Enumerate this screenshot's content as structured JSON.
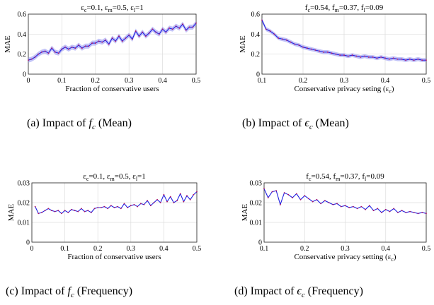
{
  "figure": {
    "captions": [
      "(a) Impact of $f_c$ (Mean)",
      "(b) Impact of $\\epsilon_c$ (Mean)",
      "(c) Impact of $f_c$ (Frequency)",
      "(d) Impact of $\\epsilon_c$ (Frequency)"
    ],
    "line_color": "#1f1fe0",
    "band_color": "#8f8ff0"
  },
  "chart_data": [
    {
      "type": "line",
      "title": "ε_c=0.1, ε_m=0.5, ε_l=1",
      "xlabel": "Fraction of conservative users",
      "ylabel": "MAE",
      "xlim": [
        0,
        0.5
      ],
      "ylim": [
        0,
        0.6
      ],
      "xticks": [
        "0",
        "0.1",
        "0.2",
        "0.3",
        "0.4",
        "0.5"
      ],
      "yticks": [
        "0",
        "0.2",
        "0.4",
        "0.6"
      ],
      "grid": true,
      "band": true,
      "series": [
        {
          "x": [
            0.0,
            0.01,
            0.02,
            0.03,
            0.04,
            0.05,
            0.06,
            0.07,
            0.08,
            0.09,
            0.1,
            0.11,
            0.12,
            0.13,
            0.14,
            0.15,
            0.16,
            0.17,
            0.18,
            0.19,
            0.2,
            0.21,
            0.22,
            0.23,
            0.24,
            0.25,
            0.26,
            0.27,
            0.28,
            0.29,
            0.3,
            0.31,
            0.32,
            0.33,
            0.34,
            0.35,
            0.36,
            0.37,
            0.38,
            0.39,
            0.4,
            0.41,
            0.42,
            0.43,
            0.44,
            0.45,
            0.46,
            0.47,
            0.48,
            0.49,
            0.5
          ],
          "values": [
            0.14,
            0.15,
            0.17,
            0.2,
            0.22,
            0.23,
            0.21,
            0.26,
            0.22,
            0.21,
            0.25,
            0.27,
            0.25,
            0.27,
            0.26,
            0.29,
            0.26,
            0.28,
            0.28,
            0.31,
            0.31,
            0.33,
            0.32,
            0.34,
            0.3,
            0.36,
            0.33,
            0.38,
            0.33,
            0.36,
            0.39,
            0.35,
            0.43,
            0.38,
            0.42,
            0.38,
            0.41,
            0.45,
            0.42,
            0.4,
            0.45,
            0.42,
            0.46,
            0.45,
            0.48,
            0.46,
            0.5,
            0.44,
            0.47,
            0.47,
            0.51
          ],
          "band_halfwidth": 0.025
        }
      ]
    },
    {
      "type": "line",
      "title": "f_c=0.54, f_m=0.37, f_l=0.09",
      "xlabel": "Conservative privacy seting (ε_c)",
      "ylabel": "MAE",
      "xlim": [
        0.1,
        0.5
      ],
      "ylim": [
        0,
        0.6
      ],
      "xticks": [
        "0.1",
        "0.2",
        "0.3",
        "0.4",
        "0.5"
      ],
      "yticks": [
        "0",
        "0.2",
        "0.4",
        "0.6"
      ],
      "grid": true,
      "band": true,
      "series": [
        {
          "x": [
            0.1,
            0.11,
            0.12,
            0.13,
            0.14,
            0.15,
            0.16,
            0.17,
            0.18,
            0.19,
            0.2,
            0.21,
            0.22,
            0.23,
            0.24,
            0.25,
            0.26,
            0.27,
            0.28,
            0.29,
            0.3,
            0.31,
            0.32,
            0.33,
            0.34,
            0.35,
            0.36,
            0.37,
            0.38,
            0.39,
            0.4,
            0.41,
            0.42,
            0.43,
            0.44,
            0.45,
            0.46,
            0.47,
            0.48,
            0.49,
            0.5
          ],
          "values": [
            0.54,
            0.45,
            0.43,
            0.4,
            0.36,
            0.35,
            0.34,
            0.32,
            0.3,
            0.29,
            0.27,
            0.26,
            0.25,
            0.24,
            0.23,
            0.22,
            0.22,
            0.21,
            0.2,
            0.19,
            0.19,
            0.18,
            0.19,
            0.18,
            0.17,
            0.18,
            0.17,
            0.17,
            0.16,
            0.17,
            0.16,
            0.15,
            0.16,
            0.15,
            0.15,
            0.14,
            0.15,
            0.14,
            0.15,
            0.14,
            0.14
          ],
          "band_halfwidth": 0.02
        }
      ]
    },
    {
      "type": "line",
      "title": "ε_c=0.1, ε_m=0.5, ε_l=1",
      "xlabel": "Fraction of conservative users",
      "ylabel": "MAE",
      "xlim": [
        0,
        0.5
      ],
      "ylim": [
        0,
        0.03
      ],
      "xticks": [
        "0",
        "0.1",
        "0.2",
        "0.3",
        "0.4",
        "0.5"
      ],
      "yticks": [
        "0",
        "0.01",
        "0.02",
        "0.03"
      ],
      "grid": true,
      "band": false,
      "series": [
        {
          "x": [
            0.01,
            0.02,
            0.03,
            0.04,
            0.05,
            0.06,
            0.07,
            0.08,
            0.09,
            0.1,
            0.11,
            0.12,
            0.13,
            0.14,
            0.15,
            0.16,
            0.17,
            0.18,
            0.19,
            0.2,
            0.21,
            0.22,
            0.23,
            0.24,
            0.25,
            0.26,
            0.27,
            0.28,
            0.29,
            0.3,
            0.31,
            0.32,
            0.33,
            0.34,
            0.35,
            0.36,
            0.37,
            0.38,
            0.39,
            0.4,
            0.41,
            0.42,
            0.43,
            0.44,
            0.45,
            0.46,
            0.47,
            0.48,
            0.49,
            0.5
          ],
          "values": [
            0.018,
            0.0145,
            0.015,
            0.016,
            0.017,
            0.016,
            0.0155,
            0.016,
            0.0145,
            0.016,
            0.015,
            0.0165,
            0.016,
            0.0155,
            0.017,
            0.0155,
            0.016,
            0.015,
            0.017,
            0.0175,
            0.0175,
            0.018,
            0.017,
            0.0185,
            0.0175,
            0.018,
            0.017,
            0.0195,
            0.0175,
            0.0185,
            0.019,
            0.018,
            0.0195,
            0.019,
            0.021,
            0.0185,
            0.02,
            0.0215,
            0.02,
            0.024,
            0.0205,
            0.023,
            0.02,
            0.021,
            0.0245,
            0.0205,
            0.0235,
            0.0215,
            0.024,
            0.0255
          ]
        }
      ]
    },
    {
      "type": "line",
      "title": "f_c=0.54, f_m=0.37, f_l=0.09",
      "xlabel": "Conservative privacy setting (ε_c)",
      "ylabel": "MAE",
      "xlim": [
        0.1,
        0.5
      ],
      "ylim": [
        0,
        0.03
      ],
      "xticks": [
        "0.1",
        "0.2",
        "0.3",
        "0.4",
        "0.5"
      ],
      "yticks": [
        "0",
        "0.01",
        "0.02",
        "0.03"
      ],
      "grid": true,
      "band": false,
      "series": [
        {
          "x": [
            0.1,
            0.11,
            0.12,
            0.13,
            0.14,
            0.15,
            0.16,
            0.17,
            0.18,
            0.19,
            0.2,
            0.21,
            0.22,
            0.23,
            0.24,
            0.25,
            0.26,
            0.27,
            0.28,
            0.29,
            0.3,
            0.31,
            0.32,
            0.33,
            0.34,
            0.35,
            0.36,
            0.37,
            0.38,
            0.39,
            0.4,
            0.41,
            0.42,
            0.43,
            0.44,
            0.45,
            0.46,
            0.47,
            0.48,
            0.49,
            0.5
          ],
          "values": [
            0.027,
            0.0225,
            0.0255,
            0.026,
            0.019,
            0.025,
            0.024,
            0.0225,
            0.0245,
            0.0215,
            0.0235,
            0.022,
            0.0205,
            0.0215,
            0.0195,
            0.021,
            0.02,
            0.019,
            0.0195,
            0.018,
            0.0185,
            0.0175,
            0.018,
            0.017,
            0.018,
            0.0165,
            0.0185,
            0.016,
            0.017,
            0.015,
            0.0165,
            0.0155,
            0.017,
            0.015,
            0.016,
            0.015,
            0.0155,
            0.015,
            0.0145,
            0.015,
            0.0145
          ]
        }
      ]
    }
  ]
}
